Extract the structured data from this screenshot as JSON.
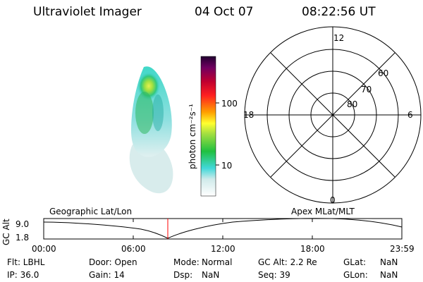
{
  "header": {
    "title": "Ultraviolet Imager",
    "date": "04 Oct 07",
    "time": "08:22:56 UT"
  },
  "image": {
    "icon": "auroral-oval-image"
  },
  "colorbar": {
    "unit_label": "photon cm⁻²s⁻¹",
    "tick_labels": [
      "100",
      "10"
    ],
    "colors": [
      "#ffffff",
      "#cfeaea",
      "#40d8d8",
      "#20c020",
      "#a8e040",
      "#ffff30",
      "#ffa000",
      "#ff2020",
      "#c00030",
      "#700060",
      "#200030"
    ]
  },
  "polar_plot": {
    "mlt_labels": {
      "top": "12",
      "left": "18",
      "right": "6",
      "bottom": "0"
    },
    "lat_labels": [
      "60",
      "70",
      "80"
    ]
  },
  "altitude_plot": {
    "ylabel": "GC Alt",
    "ytick_labels": [
      "9.0",
      "1.8"
    ],
    "left_label": "Geographic Lat/Lon",
    "right_label": "Apex MLat/MLT",
    "x_tick_labels": [
      "00:00",
      "06:00",
      "12:00",
      "18:00",
      "23:59"
    ],
    "marker_color": "#ff0000"
  },
  "status": {
    "filter": "Flt: LBHL",
    "ip": "IP: 36.0",
    "door": "Door: Open",
    "gain": "Gain: 14",
    "mode_label": "Mode:",
    "mode_value": "Normal",
    "dsp_label": "Dsp:",
    "dsp_value": "NaN",
    "gc_alt": "GC Alt: 2.2 Re",
    "seq": "Seq: 39",
    "glat_label": "GLat:",
    "glat_value": "NaN",
    "glon_label": "GLon:",
    "glon_value": "NaN"
  }
}
